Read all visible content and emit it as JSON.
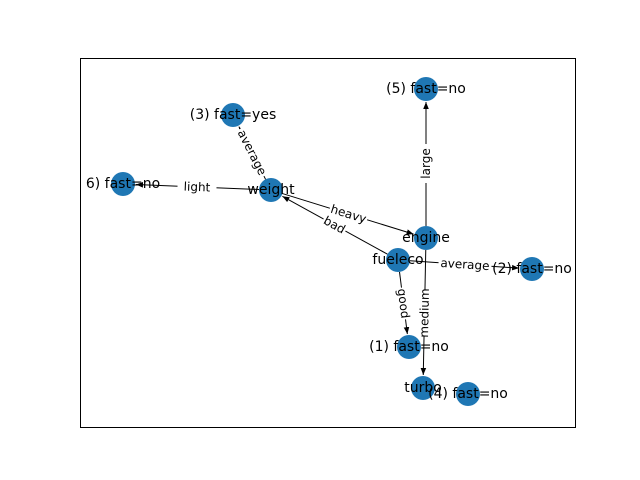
{
  "diagram": {
    "node_color": "#1f77b4",
    "edge_color": "#000000",
    "nodes": [
      {
        "id": "weight",
        "label": "weight"
      },
      {
        "id": "engine",
        "label": "engine"
      },
      {
        "id": "fueleco",
        "label": "fueleco"
      },
      {
        "id": "turbo",
        "label": "turbo"
      },
      {
        "id": "n3",
        "label": "(3) fast=yes"
      },
      {
        "id": "n5",
        "label": "(5) fast=no"
      },
      {
        "id": "n6",
        "label": "6) fast=no"
      },
      {
        "id": "n2",
        "label": "(2) fast=no"
      },
      {
        "id": "n1",
        "label": "(1) fast=no"
      },
      {
        "id": "n4",
        "label": "(4) fast=no"
      }
    ],
    "edges": [
      {
        "from": "weight",
        "to": "n3",
        "label": "average"
      },
      {
        "from": "weight",
        "to": "n6",
        "label": "light"
      },
      {
        "from": "weight",
        "to": "engine",
        "label": "heavy"
      },
      {
        "from": "fueleco",
        "to": "weight",
        "label": "bad"
      },
      {
        "from": "engine",
        "to": "n5",
        "label": "large"
      },
      {
        "from": "engine",
        "to": "turbo",
        "label": "medium"
      },
      {
        "from": "fueleco",
        "to": "n1",
        "label": "good"
      },
      {
        "from": "fueleco",
        "to": "n2",
        "label": "average"
      }
    ]
  }
}
